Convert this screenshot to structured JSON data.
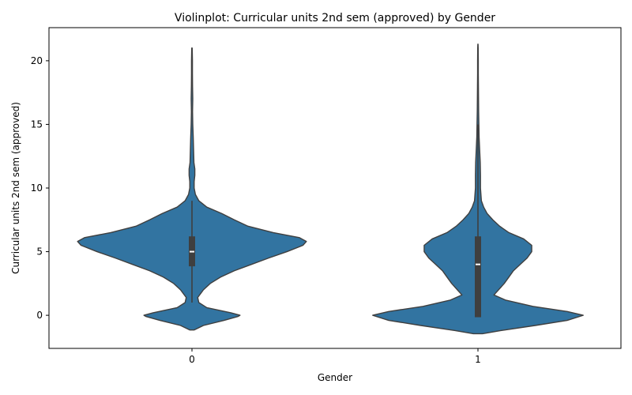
{
  "chart_data": {
    "type": "violin",
    "title": "Violinplot: Curricular units 2nd sem (approved) by Gender",
    "xlabel": "Gender",
    "ylabel": "Curricular units 2nd sem (approved)",
    "ylim": [
      -2.6,
      22.6
    ],
    "yticks": [
      0,
      5,
      10,
      15,
      20
    ],
    "categories": [
      "0",
      "1"
    ],
    "grid": false,
    "colors": {
      "violin_fill": "#3274a1",
      "violin_edge": "#3f3f3f",
      "box": "#3f3f3f",
      "median": "#ffffff"
    },
    "series": [
      {
        "category": "0",
        "min": 1,
        "q1": 3.85,
        "median": 5,
        "q3": 6.2,
        "max": 9,
        "density": [
          [
            -1.15,
            0.02
          ],
          [
            -0.8,
            0.1
          ],
          [
            -0.4,
            0.28
          ],
          [
            -0.1,
            0.4
          ],
          [
            0,
            0.42
          ],
          [
            0.2,
            0.34
          ],
          [
            0.6,
            0.13
          ],
          [
            1.0,
            0.06
          ],
          [
            1.4,
            0.05
          ],
          [
            2.0,
            0.1
          ],
          [
            2.5,
            0.16
          ],
          [
            3.0,
            0.25
          ],
          [
            3.5,
            0.37
          ],
          [
            4.0,
            0.52
          ],
          [
            4.5,
            0.67
          ],
          [
            5.0,
            0.83
          ],
          [
            5.5,
            0.97
          ],
          [
            5.8,
            1.0
          ],
          [
            6.1,
            0.94
          ],
          [
            6.5,
            0.71
          ],
          [
            7.0,
            0.49
          ],
          [
            7.5,
            0.37
          ],
          [
            8.0,
            0.26
          ],
          [
            8.5,
            0.13
          ],
          [
            9.0,
            0.06
          ],
          [
            9.5,
            0.03
          ],
          [
            10.0,
            0.019
          ],
          [
            10.5,
            0.019
          ],
          [
            11.0,
            0.025
          ],
          [
            11.5,
            0.025
          ],
          [
            12.0,
            0.017
          ],
          [
            13.0,
            0.014
          ],
          [
            14.0,
            0.011
          ],
          [
            15.0,
            0.007
          ],
          [
            16.0,
            0.005
          ],
          [
            17.0,
            0.007
          ],
          [
            18.0,
            0.005
          ],
          [
            19.0,
            0.004
          ],
          [
            20.0,
            0.004
          ],
          [
            21.0,
            0.002
          ]
        ]
      },
      {
        "category": "1",
        "min": -0.15,
        "q1": -0.15,
        "median": 4,
        "q3": 6.2,
        "max": 15,
        "density": [
          [
            -1.45,
            0.04
          ],
          [
            -1.2,
            0.2
          ],
          [
            -0.8,
            0.5
          ],
          [
            -0.4,
            0.78
          ],
          [
            0,
            0.92
          ],
          [
            0.3,
            0.78
          ],
          [
            0.7,
            0.48
          ],
          [
            1.2,
            0.24
          ],
          [
            1.6,
            0.14
          ],
          [
            2.0,
            0.18
          ],
          [
            2.5,
            0.23
          ],
          [
            3.0,
            0.27
          ],
          [
            3.5,
            0.31
          ],
          [
            4.0,
            0.37
          ],
          [
            4.5,
            0.43
          ],
          [
            5.0,
            0.47
          ],
          [
            5.5,
            0.47
          ],
          [
            6.0,
            0.4
          ],
          [
            6.5,
            0.27
          ],
          [
            7.0,
            0.19
          ],
          [
            7.5,
            0.13
          ],
          [
            8.0,
            0.08
          ],
          [
            8.5,
            0.05
          ],
          [
            9.0,
            0.03
          ],
          [
            10.0,
            0.022
          ],
          [
            11.0,
            0.022
          ],
          [
            12.0,
            0.02
          ],
          [
            13.0,
            0.015
          ],
          [
            14.0,
            0.01
          ],
          [
            15.0,
            0.008
          ],
          [
            16.0,
            0.006
          ],
          [
            17.0,
            0.005
          ],
          [
            18.0,
            0.004
          ],
          [
            19.0,
            0.003
          ],
          [
            20.0,
            0.003
          ],
          [
            21.0,
            0.002
          ],
          [
            21.3,
            0.001
          ]
        ]
      }
    ]
  }
}
